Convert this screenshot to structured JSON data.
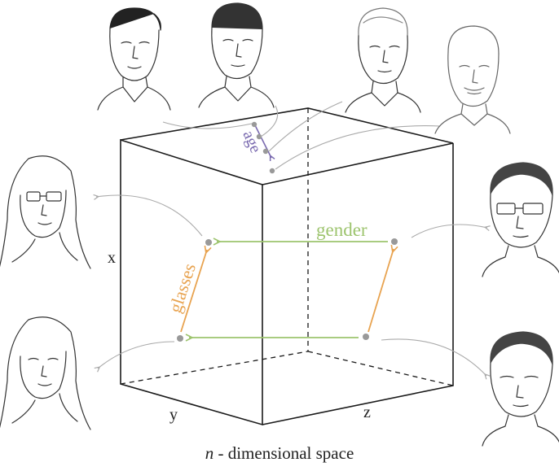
{
  "diagram": {
    "axes": {
      "x": "x",
      "y": "y",
      "z": "z"
    },
    "vectors": {
      "age": "age",
      "gender": "gender",
      "glasses": "glasses"
    },
    "caption": {
      "italic": "n",
      "rest": " - dimensional space"
    },
    "colors": {
      "age": "#7b6bb0",
      "gender": "#9dc46e",
      "glasses": "#e8a350",
      "points": "#999999",
      "edges": "#1a1a1a"
    },
    "faces": [
      "young-man-face",
      "adult-man-face",
      "middle-aged-man-face",
      "elderly-man-face",
      "woman-with-glasses-face",
      "woman-face",
      "man-with-glasses-face",
      "man-face"
    ]
  }
}
